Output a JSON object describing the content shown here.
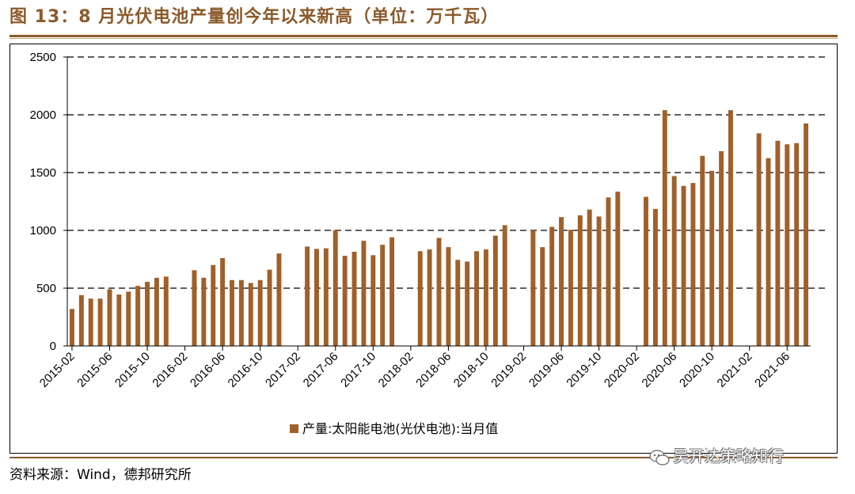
{
  "figure": {
    "title": "图 13：8 月光伏电池产量创今年以来新高（单位：万千瓦）",
    "source": "资料来源：Wind，德邦研究所",
    "watermark": "吴开达策略知行"
  },
  "colors": {
    "bar": "#a0602a",
    "accent": "#8b5a2b",
    "grid": "#000000"
  },
  "chart_data": {
    "type": "bar",
    "ylim": [
      0,
      2500
    ],
    "yticks": [
      "0",
      "500",
      "1000",
      "1500",
      "2000",
      "2500"
    ],
    "grid": "horizontal dashed",
    "legend_position": "bottom-center",
    "series": [
      {
        "name": "产量:太阳能电池(光伏电池):当月值",
        "values": [
          320,
          440,
          410,
          410,
          490,
          445,
          470,
          520,
          555,
          590,
          600,
          null,
          null,
          655,
          590,
          700,
          760,
          570,
          570,
          545,
          570,
          660,
          800,
          null,
          null,
          860,
          840,
          845,
          1000,
          780,
          815,
          910,
          785,
          875,
          940,
          null,
          null,
          820,
          835,
          935,
          855,
          745,
          730,
          820,
          835,
          955,
          1045,
          null,
          null,
          1000,
          855,
          1030,
          1115,
          1005,
          1130,
          1180,
          1120,
          1285,
          1335,
          null,
          null,
          1290,
          1185,
          2040,
          1470,
          1385,
          1410,
          1645,
          1515,
          1685,
          2040,
          null,
          null,
          1840,
          1625,
          1775,
          1745,
          1755,
          1925
        ]
      }
    ],
    "x_tick_labels": [
      "2015-02",
      "2015-06",
      "2015-10",
      "2016-02",
      "2016-06",
      "2016-10",
      "2017-02",
      "2017-06",
      "2017-10",
      "2018-02",
      "2018-06",
      "2018-10",
      "2019-02",
      "2019-06",
      "2019-10",
      "2020-02",
      "2020-06",
      "2020-10",
      "2021-02",
      "2021-06"
    ]
  }
}
